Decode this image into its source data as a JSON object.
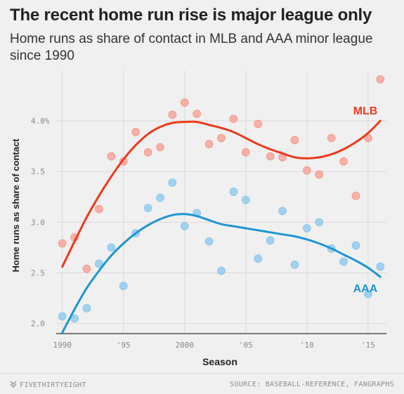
{
  "title": "The recent home run rise is major league only",
  "subtitle": "Home runs as share of contact in MLB and AAA minor league since 1990",
  "footer": {
    "brand": "FIVETHIRTYEIGHT",
    "source": "SOURCE: BASEBALL-REFERENCE, FANGRAPHS"
  },
  "colors": {
    "mlb_line": "#ed3a1c",
    "mlb_dots": "#f7a49a",
    "aaa_line": "#1e95d4",
    "aaa_dots": "#93cbee",
    "grid": "#d9d9d9",
    "background": "#f0f0f0"
  },
  "chart_data": {
    "type": "scatter",
    "xlabel": "Season",
    "ylabel": "Home runs as share of contact",
    "xlim": [
      1989.5,
      2016.5
    ],
    "ylim": [
      1.9,
      4.5
    ],
    "x_ticks": [
      1990,
      1995,
      2000,
      2005,
      2010,
      2015
    ],
    "x_tick_labels": [
      "1990",
      "'95",
      "2000",
      "'05",
      "'10",
      "'15"
    ],
    "y_ticks": [
      2.0,
      2.5,
      3.0,
      3.5,
      4.0
    ],
    "y_tick_labels": [
      "2.0",
      "2.5",
      "3.0",
      "3.5",
      "4.0%"
    ],
    "grid": true,
    "series": [
      {
        "name": "MLB",
        "label_position": "upper-right",
        "points": {
          "x": [
            1990,
            1991,
            1992,
            1993,
            1994,
            1995,
            1996,
            1997,
            1998,
            1999,
            2000,
            2001,
            2002,
            2003,
            2004,
            2005,
            2006,
            2007,
            2008,
            2009,
            2010,
            2011,
            2012,
            2013,
            2014,
            2015,
            2016
          ],
          "y": [
            2.79,
            2.85,
            2.54,
            3.13,
            3.65,
            3.6,
            3.89,
            3.69,
            3.74,
            4.06,
            4.18,
            4.07,
            3.77,
            3.83,
            4.02,
            3.69,
            3.97,
            3.65,
            3.64,
            3.81,
            3.51,
            3.47,
            3.83,
            3.6,
            3.26,
            3.83,
            4.41
          ]
        },
        "trend": {
          "x": [
            1990,
            1991,
            1992,
            1993,
            1994,
            1995,
            1996,
            1997,
            1998,
            1999,
            2000,
            2001,
            2002,
            2003,
            2004,
            2005,
            2006,
            2007,
            2008,
            2009,
            2010,
            2011,
            2012,
            2013,
            2014,
            2015,
            2016
          ],
          "y": [
            2.56,
            2.81,
            3.05,
            3.26,
            3.45,
            3.62,
            3.76,
            3.87,
            3.94,
            3.98,
            3.99,
            3.99,
            3.96,
            3.93,
            3.89,
            3.83,
            3.77,
            3.72,
            3.68,
            3.64,
            3.63,
            3.64,
            3.67,
            3.72,
            3.79,
            3.88,
            4.0
          ]
        }
      },
      {
        "name": "AAA",
        "label_position": "lower-right",
        "points": {
          "x": [
            1990,
            1991,
            1992,
            1993,
            1994,
            1995,
            1996,
            1997,
            1998,
            1999,
            2000,
            2001,
            2002,
            2003,
            2004,
            2005,
            2006,
            2007,
            2008,
            2009,
            2010,
            2011,
            2012,
            2013,
            2014,
            2015,
            2016
          ],
          "y": [
            2.07,
            2.05,
            2.15,
            2.59,
            2.75,
            2.37,
            2.89,
            3.14,
            3.24,
            3.39,
            2.96,
            3.09,
            2.81,
            2.52,
            3.3,
            3.22,
            2.64,
            2.82,
            3.11,
            2.58,
            2.94,
            3.0,
            2.74,
            2.61,
            2.77,
            2.29,
            2.56
          ]
        },
        "trend": {
          "x": [
            1990,
            1991,
            1992,
            1993,
            1994,
            1995,
            1996,
            1997,
            1998,
            1999,
            2000,
            2001,
            2002,
            2003,
            2004,
            2005,
            2006,
            2007,
            2008,
            2009,
            2010,
            2011,
            2012,
            2013,
            2014,
            2015,
            2016
          ],
          "y": [
            1.91,
            2.14,
            2.35,
            2.52,
            2.67,
            2.79,
            2.89,
            2.97,
            3.03,
            3.07,
            3.08,
            3.06,
            3.02,
            2.98,
            2.96,
            2.94,
            2.92,
            2.9,
            2.88,
            2.86,
            2.83,
            2.79,
            2.74,
            2.68,
            2.62,
            2.55,
            2.46
          ]
        }
      }
    ]
  }
}
